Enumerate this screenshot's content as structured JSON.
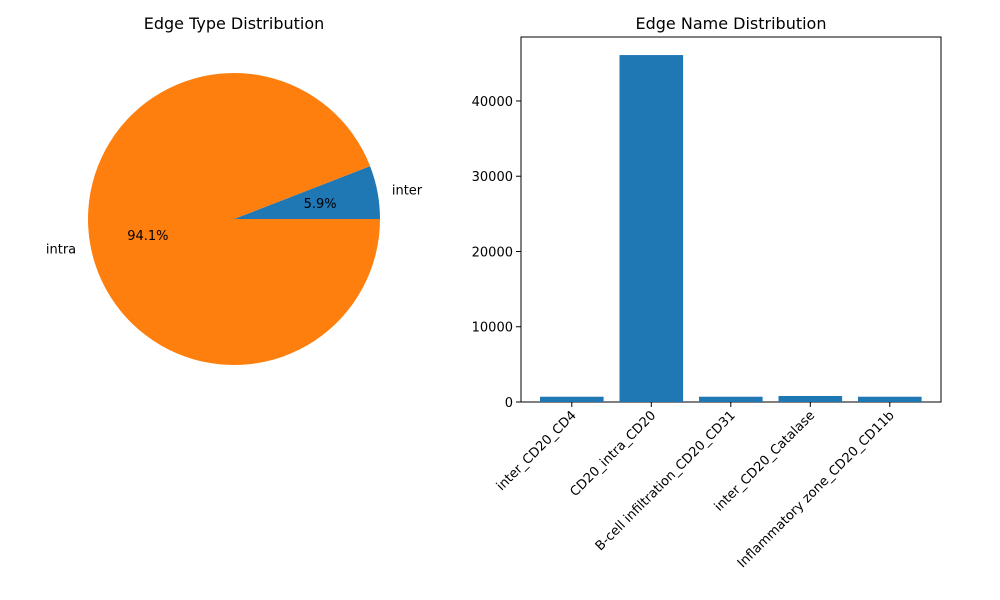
{
  "chart_data": [
    {
      "type": "pie",
      "title": "Edge Type Distribution",
      "labels": [
        "inter",
        "intra"
      ],
      "values": [
        5.9,
        94.1
      ],
      "pct_labels": [
        "5.9%",
        "94.1%"
      ],
      "colors": [
        "#1f77b4",
        "#ff7f0e"
      ]
    },
    {
      "type": "bar",
      "title": "Edge Name Distribution",
      "categories": [
        "inter_CD20_CD4",
        "CD20_intra_CD20",
        "B-cell infiltration_CD20_CD31",
        "inter_CD20_Catalase",
        "Inflammatory zone_CD20_CD11b"
      ],
      "values": [
        700,
        46100,
        700,
        800,
        700
      ],
      "ylim": [
        0,
        48500
      ],
      "yticks": [
        0,
        10000,
        20000,
        30000,
        40000
      ],
      "ytick_labels": [
        "0",
        "10000",
        "20000",
        "30000",
        "40000"
      ],
      "color": "#1f77b4"
    }
  ]
}
